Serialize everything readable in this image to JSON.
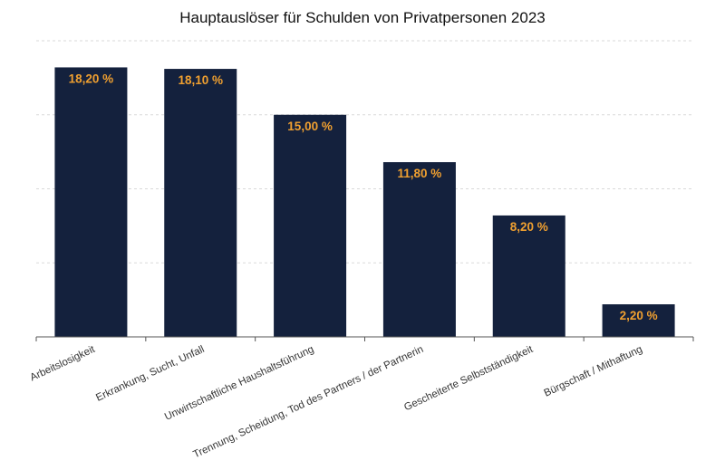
{
  "chart_data": {
    "type": "bar",
    "title": "Hauptauslöser für Schulden von Privatpersonen 2023",
    "categories": [
      "Arbeitslosigkeit",
      "Erkrankung, Sucht, Unfall",
      "Unwirtschaftliche Haushaltsführung",
      "Trennung, Scheidung, Tod des Partners / der Partnerin",
      "Gescheiterte Selbstständigkeit",
      "Bürgschaft / Mithaftung"
    ],
    "values": [
      18.2,
      18.1,
      15.0,
      11.8,
      8.2,
      2.2
    ],
    "value_labels": [
      "18,20 %",
      "18,10 %",
      "15,00 %",
      "11,80 %",
      "8,20 %",
      "2,20 %"
    ],
    "xlabel": "",
    "ylabel": "",
    "ylim": [
      0,
      20
    ],
    "grid": true,
    "legend": "none",
    "colors": {
      "bar": "#14213d",
      "label": "#f0a030",
      "grid": "#d9d9d9",
      "axis": "#555555"
    }
  }
}
